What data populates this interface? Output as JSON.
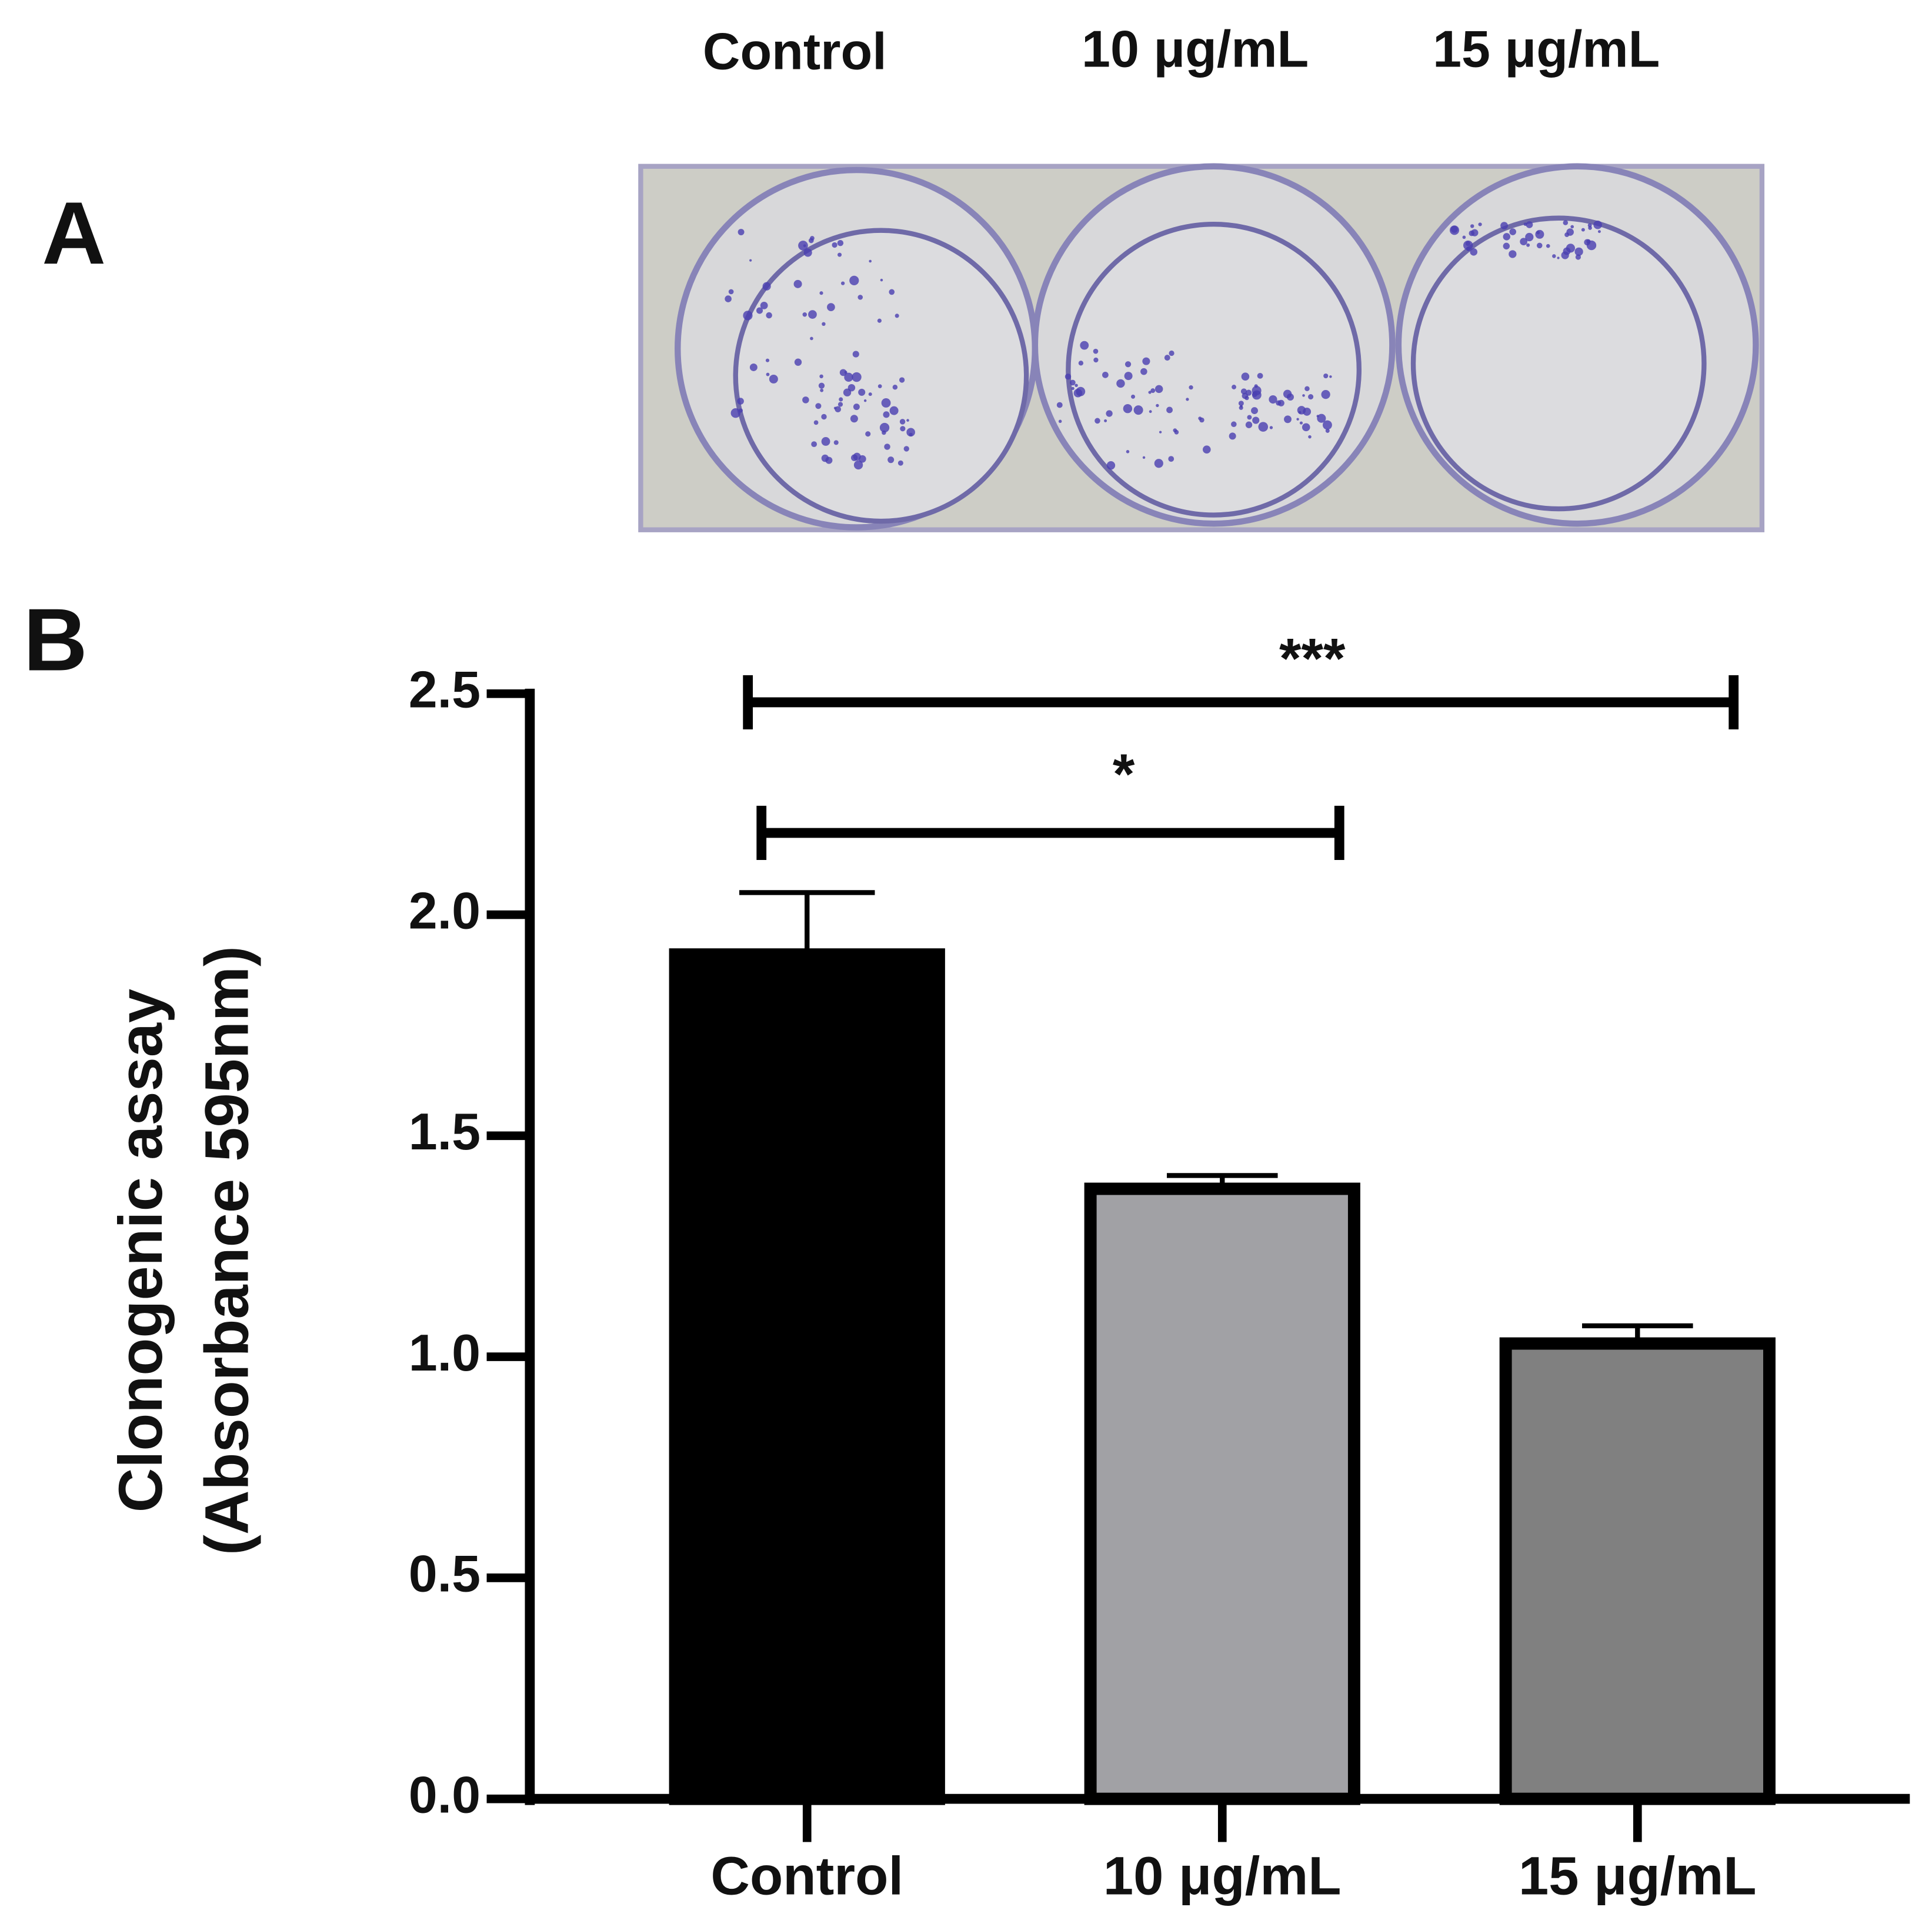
{
  "panel_a": {
    "label": "A",
    "columns": [
      "Control",
      "10 μg/mL",
      "15 μg/mL"
    ]
  },
  "chart_data": {
    "type": "bar",
    "panel_label": "B",
    "y_label": [
      "Clonogenic assay",
      "(Absorbance 595nm)"
    ],
    "categories": [
      "Control",
      "10 μg/mL",
      "15 μg/mL"
    ],
    "values": [
      1.91,
      1.38,
      1.03
    ],
    "errors": [
      0.14,
      0.03,
      0.04
    ],
    "colors": [
      "#000000",
      "#a1a1a5",
      "#808080"
    ],
    "ylim": [
      0,
      2.5
    ],
    "yticks": [
      {
        "value": 0,
        "label": "0.0"
      },
      0.5,
      {
        "value": 1,
        "label": "1.0"
      },
      1.5,
      {
        "value": 2,
        "label": "2.0"
      },
      2.5
    ],
    "annotations": [
      "***",
      "*"
    ]
  }
}
